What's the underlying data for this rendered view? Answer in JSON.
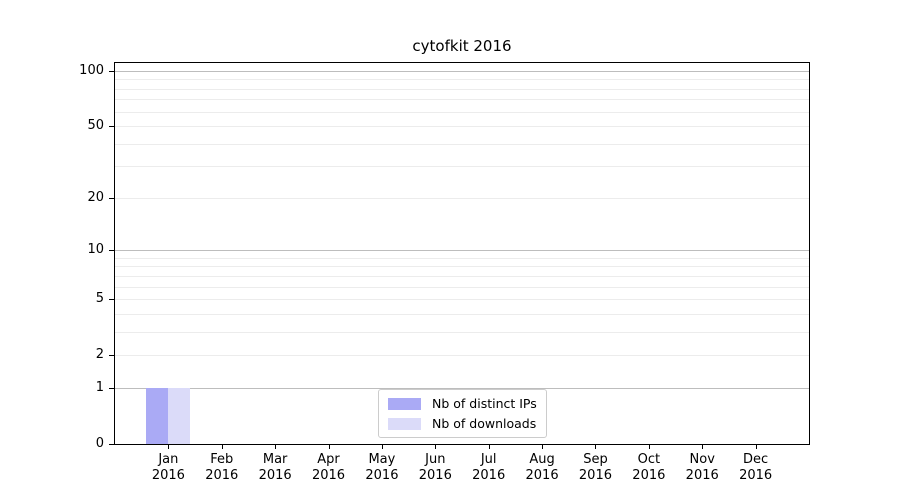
{
  "chart_data": {
    "type": "bar",
    "title": "cytofkit 2016",
    "categories": [
      "Jan",
      "Feb",
      "Mar",
      "Apr",
      "May",
      "Jun",
      "Jul",
      "Aug",
      "Sep",
      "Oct",
      "Nov",
      "Dec"
    ],
    "x_year_line": "2016",
    "series": [
      {
        "name": "Nb of distinct IPs",
        "color": "#aaaaf5",
        "values": [
          1,
          0,
          0,
          0,
          0,
          0,
          0,
          0,
          0,
          0,
          0,
          0
        ]
      },
      {
        "name": "Nb of downloads",
        "color": "#dbdbf9",
        "values": [
          1,
          0,
          0,
          0,
          0,
          0,
          0,
          0,
          0,
          0,
          0,
          0
        ]
      }
    ],
    "yscale": "log1p",
    "ylim": [
      0,
      100
    ],
    "y_ticks": [
      0,
      1,
      2,
      5,
      10,
      20,
      50,
      100
    ],
    "y_major_gridlines": [
      1,
      10,
      100
    ],
    "y_minor_gridlines": [
      2,
      3,
      4,
      5,
      6,
      7,
      8,
      9,
      20,
      30,
      40,
      50,
      60,
      70,
      80,
      90
    ],
    "grid": true,
    "legend_position": "lower center",
    "colors": {
      "axis": "#000000",
      "grid_major": "#bdbdbd",
      "grid_minor": "#ececec",
      "legend_border": "#cccccc",
      "text": "#000000"
    }
  }
}
